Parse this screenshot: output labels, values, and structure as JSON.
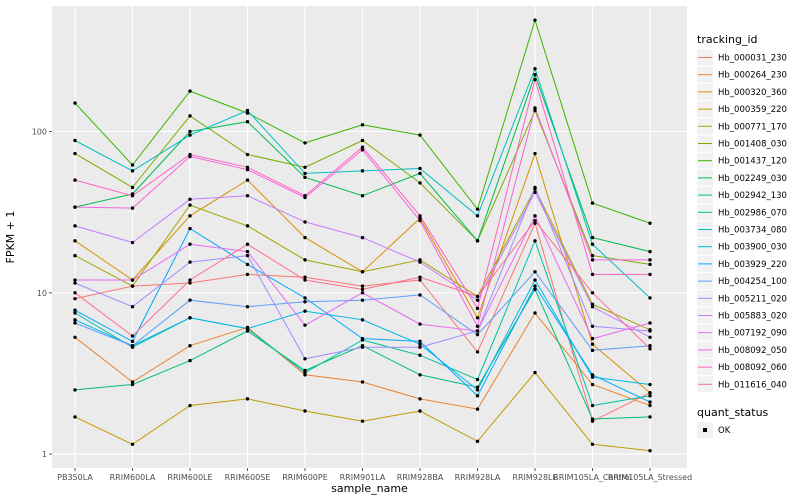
{
  "chart_data": {
    "type": "line",
    "xlabel": "sample_name",
    "ylabel": "FPKM + 1",
    "y_scale": "log10",
    "ylim": [
      0.82,
      600
    ],
    "y_ticks": [
      1,
      10,
      100
    ],
    "y_tick_labels": [
      "1",
      "10",
      "100"
    ],
    "grid": true,
    "legend_placement": "right",
    "categories": [
      "PB350LA",
      "RRIM600LA",
      "RRIM600LE",
      "RRIM600SE",
      "RRIM600PE",
      "RRIM901LA",
      "RRIM928BA",
      "RRIM928LA",
      "RRIM928LE",
      "RRIM105LA_Control",
      "RRIM105LA_Stressed"
    ],
    "legend": {
      "title": "tracking_id",
      "second_title": "quant_status",
      "second_entries": [
        "OK"
      ]
    },
    "series": [
      {
        "name": "Hb_000031_230",
        "color": "#F8766D",
        "values": [
          9.2,
          11.0,
          11.5,
          13.0,
          12.5,
          11.0,
          12.0,
          4.3,
          27.0,
          1.6,
          2.4
        ]
      },
      {
        "name": "Hb_000264_230",
        "color": "#EA8331",
        "values": [
          5.3,
          2.8,
          4.7,
          6.1,
          3.1,
          2.8,
          2.2,
          1.9,
          7.5,
          2.7,
          2.0
        ]
      },
      {
        "name": "Hb_000320_360",
        "color": "#D89000",
        "values": [
          21.0,
          12.0,
          30.0,
          50.0,
          22.0,
          13.5,
          29.0,
          7.0,
          73.0,
          4.8,
          2.4
        ]
      },
      {
        "name": "Hb_000359_220",
        "color": "#C09B00",
        "values": [
          1.7,
          1.15,
          2.0,
          2.2,
          1.85,
          1.6,
          1.85,
          1.2,
          3.2,
          1.15,
          1.05
        ]
      },
      {
        "name": "Hb_000771_170",
        "color": "#A3A500",
        "values": [
          17.0,
          11.0,
          35.0,
          26.0,
          16.0,
          13.5,
          16.0,
          9.5,
          44.0,
          8.5,
          5.9
        ]
      },
      {
        "name": "Hb_001408_030",
        "color": "#7CAE00",
        "values": [
          73.0,
          45.0,
          125.0,
          72.0,
          60.0,
          88.0,
          48.0,
          21.0,
          135.0,
          17.0,
          15.0
        ]
      },
      {
        "name": "Hb_001437_120",
        "color": "#39B600",
        "values": [
          150.0,
          62.0,
          178.0,
          130.0,
          85.0,
          110.0,
          95.0,
          33.0,
          490.0,
          36.0,
          27.0
        ]
      },
      {
        "name": "Hb_002249_030",
        "color": "#00BB4E",
        "values": [
          34.0,
          41.0,
          100.0,
          115.0,
          52.0,
          40.0,
          55.0,
          21.0,
          225.0,
          22.0,
          18.0
        ]
      },
      {
        "name": "Hb_002942_130",
        "color": "#00BF7D",
        "values": [
          2.5,
          2.7,
          3.8,
          5.8,
          3.3,
          4.7,
          3.1,
          2.6,
          10.5,
          1.65,
          1.7
        ]
      },
      {
        "name": "Hb_002986_070",
        "color": "#00C1A3",
        "values": [
          7.5,
          4.6,
          7.0,
          6.0,
          3.2,
          5.1,
          4.1,
          2.9,
          21.0,
          2.0,
          2.3
        ]
      },
      {
        "name": "Hb_003734_080",
        "color": "#00BFC4",
        "values": [
          88.0,
          57.0,
          95.0,
          135.0,
          55.0,
          57.0,
          59.0,
          30.0,
          245.0,
          20.0,
          9.3
        ]
      },
      {
        "name": "Hb_003900_030",
        "color": "#00B8E7",
        "values": [
          6.8,
          4.7,
          7.0,
          6.0,
          7.7,
          6.8,
          4.8,
          2.5,
          12.0,
          3.0,
          2.7
        ]
      },
      {
        "name": "Hb_003929_220",
        "color": "#00A9FF",
        "values": [
          7.8,
          5.0,
          25.0,
          15.0,
          9.3,
          5.2,
          5.0,
          2.3,
          11.0,
          3.1,
          2.1
        ]
      },
      {
        "name": "Hb_004254_100",
        "color": "#619CFF",
        "values": [
          6.5,
          4.7,
          9.0,
          8.2,
          8.8,
          9.0,
          9.7,
          5.5,
          13.5,
          4.4,
          4.7
        ]
      },
      {
        "name": "Hb_005211_020",
        "color": "#9F8CFF",
        "values": [
          11.5,
          8.2,
          15.5,
          17.0,
          3.9,
          4.6,
          4.6,
          5.8,
          45.0,
          6.2,
          5.8
        ]
      },
      {
        "name": "Hb_005883_020",
        "color": "#C77CFF",
        "values": [
          26.0,
          20.5,
          38.0,
          40.0,
          27.5,
          22.0,
          15.5,
          9.0,
          42.0,
          8.2,
          5.3
        ]
      },
      {
        "name": "Hb_007192_090",
        "color": "#E76BF3",
        "values": [
          12.0,
          12.0,
          20.0,
          18.0,
          6.3,
          10.0,
          6.4,
          5.8,
          30.0,
          5.2,
          6.5
        ]
      },
      {
        "name": "Hb_008092_050",
        "color": "#F763E0",
        "values": [
          34.0,
          33.5,
          70.0,
          58.0,
          39.0,
          77.0,
          28.0,
          6.2,
          140.0,
          16.0,
          16.0
        ]
      },
      {
        "name": "Hb_008092_060",
        "color": "#FF61C3",
        "values": [
          50.0,
          40.0,
          72.0,
          60.0,
          40.0,
          80.0,
          30.0,
          8.0,
          210.0,
          13.0,
          13.0
        ]
      },
      {
        "name": "Hb_011616_040",
        "color": "#FF6C91",
        "values": [
          10.0,
          5.4,
          12.0,
          20.0,
          12.0,
          10.5,
          12.5,
          9.5,
          28.0,
          10.0,
          4.5
        ]
      }
    ]
  }
}
